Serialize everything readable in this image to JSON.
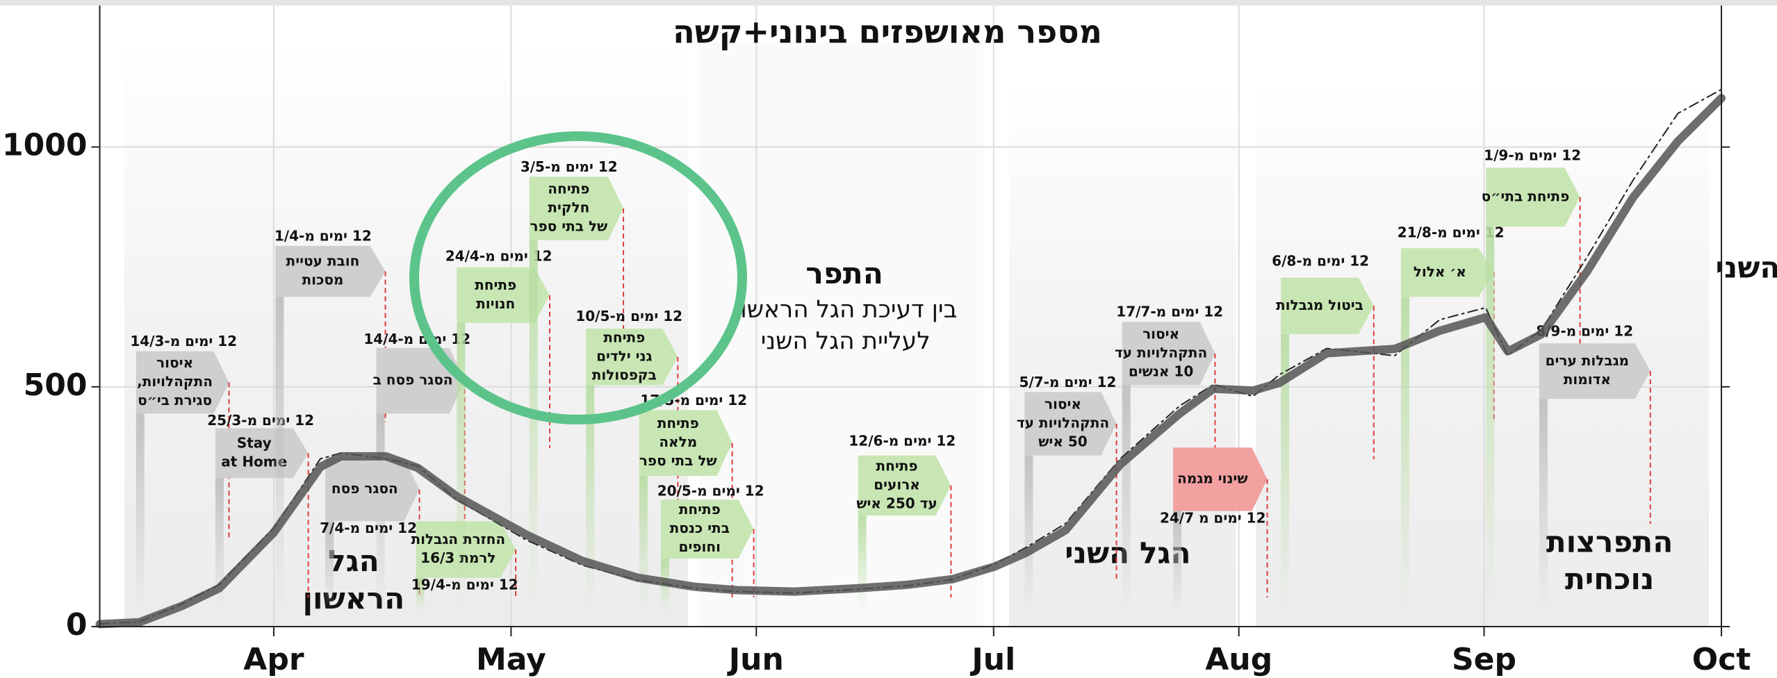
{
  "chart_data": {
    "type": "line",
    "title": "מספר מאושפזים בינוני+קשה",
    "x": [
      9,
      14,
      19.4,
      24.1,
      31,
      36.9,
      39.5,
      45.2,
      49.2,
      54.1,
      63,
      70,
      77,
      84.2,
      89.6,
      96.8,
      104.9,
      111,
      116.8,
      122.1,
      126.1,
      131.1,
      138,
      145.5,
      149.8,
      154.8,
      158.1,
      164.1,
      172.7,
      178.4,
      184.2,
      187,
      191.3,
      197,
      202.8,
      208.5,
      214
    ],
    "series": [
      {
        "color": "#555555",
        "values": [
          5,
          9,
          43,
          80,
          196,
          333,
          355,
          355,
          331,
          272,
          191,
          137,
          102,
          83,
          76,
          73,
          80,
          87,
          99,
          125,
          154,
          201,
          338,
          444,
          496,
          492,
          508,
          570,
          579,
          617,
          645,
          574,
          610,
          740,
          894,
          1012,
          1102
        ]
      },
      {
        "color": "#222222",
        "values": [
          6,
          10,
          47,
          88,
          205,
          350,
          362,
          350,
          335,
          265,
          180,
          128,
          97,
          80,
          73,
          70,
          78,
          85,
          98,
          130,
          165,
          215,
          350,
          460,
          505,
          480,
          525,
          580,
          565,
          640,
          665,
          565,
          620,
          770,
          930,
          1070,
          1120
        ]
      }
    ],
    "xlim": [
      9,
      214
    ],
    "xticks": [
      {
        "value": 31,
        "label": "Apr"
      },
      {
        "value": 61,
        "label": "May"
      },
      {
        "value": 92,
        "label": "Jun"
      },
      {
        "value": 122,
        "label": "Jul"
      },
      {
        "value": 153,
        "label": "Aug"
      },
      {
        "value": 184,
        "label": "Sep"
      },
      {
        "value": 214,
        "label": "Oct"
      }
    ],
    "ylim": [
      0,
      1295
    ],
    "yticks": [
      0,
      500,
      1000
    ],
    "grid": true,
    "phase_labels": [
      [
        "הגל",
        "הראשון"
      ],
      [
        "התפר"
      ],
      [
        "בין דעיכת הגל הראשון",
        "לעליית הגל השני"
      ],
      [
        "הגל  השני"
      ],
      [
        "התפרצות",
        "נוכחית"
      ],
      [
        "השני"
      ]
    ],
    "annotations": [
      {
        "header": "12 ימים מ-14/3",
        "lines": [
          "איסור",
          "התקהלויות,",
          "סגירת בי״ס"
        ],
        "color": "#cfcfcf"
      },
      {
        "header": "12 ימים מ-25/3",
        "lines": [
          "Stay",
          "at Home"
        ],
        "color": "#cfcfcf"
      },
      {
        "header": "12 ימים מ-1/4",
        "lines": [
          "חובת עטיית",
          "מסכות"
        ],
        "color": "#cfcfcf"
      },
      {
        "header": "12 ימים מ-14/4",
        "lines": [
          "הסגר פסח ב"
        ],
        "color": "#cfcfcf"
      },
      {
        "header": "12 ימים מ-7/4",
        "lines": [
          "הסגר פסח"
        ],
        "color": "#cfcfcf"
      },
      {
        "header": "12 ימים מ-19/4",
        "lines": [
          "החזרת הגבלות",
          "לרמת 16/3"
        ],
        "color": "#c8e6b4"
      },
      {
        "header": "12 ימים מ-24/4",
        "lines": [
          "פתיחת",
          "חנויות"
        ],
        "color": "#c8e6b4"
      },
      {
        "header": "12 ימים מ-3/5",
        "lines": [
          "פתיחה",
          "חלקית",
          "של בתי ספר"
        ],
        "color": "#c8e6b4"
      },
      {
        "header": "12 ימים מ-10/5",
        "lines": [
          "פתיחת",
          "גני ילדים",
          "בקפסולות"
        ],
        "color": "#c8e6b4"
      },
      {
        "header": "12 ימים מ-17/5",
        "lines": [
          "פתיחת",
          "מלאה",
          "של בתי ספר"
        ],
        "color": "#c8e6b4"
      },
      {
        "header": "12 ימים מ-20/5",
        "lines": [
          "פתיחת",
          "בתי כנסת",
          "וחופים"
        ],
        "color": "#c8e6b4"
      },
      {
        "header": "12 ימים מ-12/6",
        "lines": [
          "פתיחת",
          "ארועים",
          "עד 250 איש"
        ],
        "color": "#c8e6b4"
      },
      {
        "header": "12 ימים מ-5/7",
        "lines": [
          "איסור",
          "התקהלויות עד",
          "50 איש"
        ],
        "color": "#cfcfcf"
      },
      {
        "header": "12 ימים מ-17/7",
        "lines": [
          "איסור",
          "התקהלויות עד",
          "10 אנשים"
        ],
        "color": "#cfcfcf"
      },
      {
        "header": "12 ימים מ 24/7",
        "lines": [
          "שינוי מגמה"
        ],
        "color": "#f2a0a0"
      },
      {
        "header": "12 ימים מ-6/8",
        "lines": [
          "ביטול מגבלות"
        ],
        "color": "#c8e6b4"
      },
      {
        "header": "12 ימים מ-21/8",
        "lines": [
          "א׳ אלול"
        ],
        "color": "#c8e6b4"
      },
      {
        "header": "12 ימים מ-1/9",
        "lines": [
          "פתיחת בתי״ס"
        ],
        "color": "#c8e6b4"
      },
      {
        "header": "12 ימים מ-8/9",
        "lines": [
          "מגבלות ערים",
          "אדומות"
        ],
        "color": "#cfcfcf"
      }
    ]
  }
}
